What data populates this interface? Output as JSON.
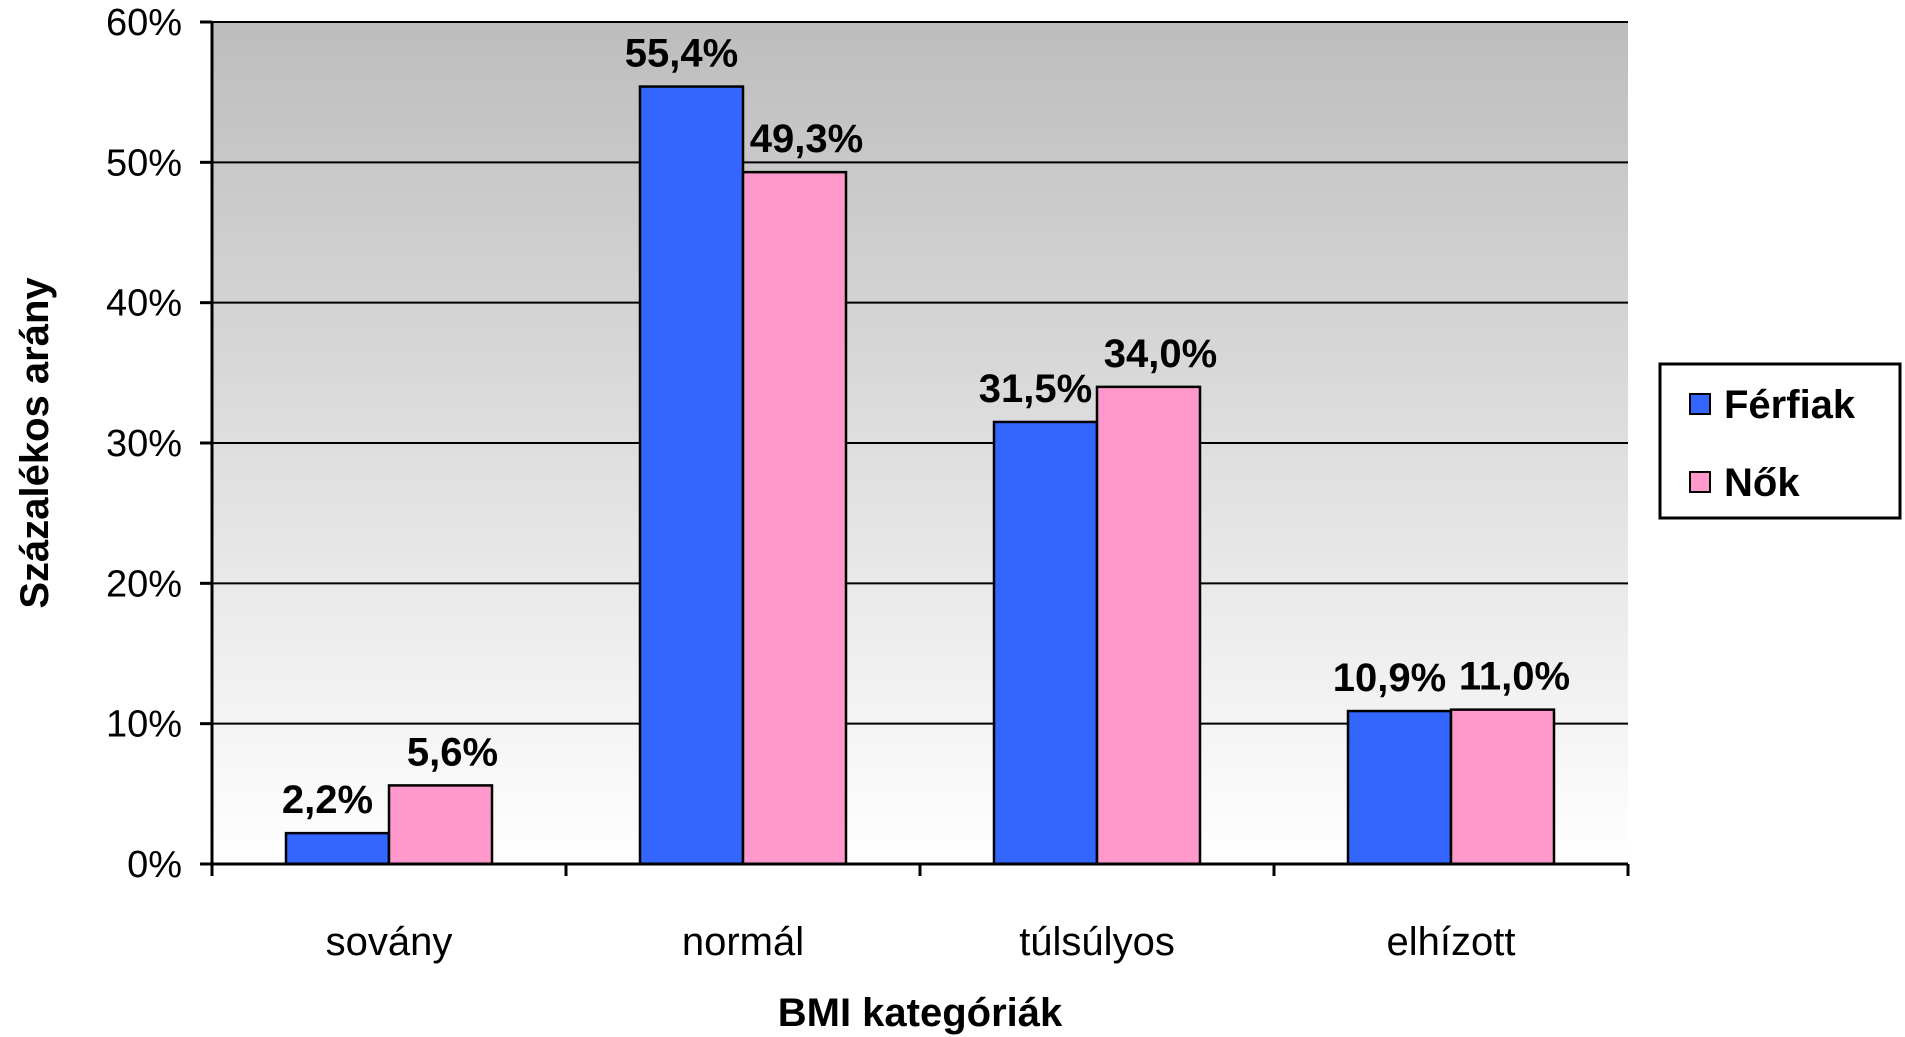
{
  "chart_data": {
    "type": "bar",
    "categories": [
      "sovány",
      "normál",
      "túlsúlyos",
      "elhízott"
    ],
    "series": [
      {
        "name": "Férfiak",
        "color": "#3366ff",
        "values": [
          2.2,
          55.4,
          31.5,
          10.9
        ],
        "labels": [
          "2,2%",
          "55,4%",
          "31,5%",
          "10,9%"
        ]
      },
      {
        "name": "Nők",
        "color": "#ff99cc",
        "values": [
          5.6,
          49.3,
          34.0,
          11.0
        ],
        "labels": [
          "5,6%",
          "49,3%",
          "34,0%",
          "11,0%"
        ]
      }
    ],
    "title": "",
    "xlabel": "BMI kategóriák",
    "ylabel": "Százalékos arány",
    "ylim": [
      0,
      60
    ],
    "yticks": [
      0,
      10,
      20,
      30,
      40,
      50,
      60
    ],
    "ytick_labels": [
      "0%",
      "10%",
      "20%",
      "30%",
      "40%",
      "50%",
      "60%"
    ],
    "grid": true,
    "plot_background": "gradient gray-to-white",
    "legend_position": "right"
  }
}
